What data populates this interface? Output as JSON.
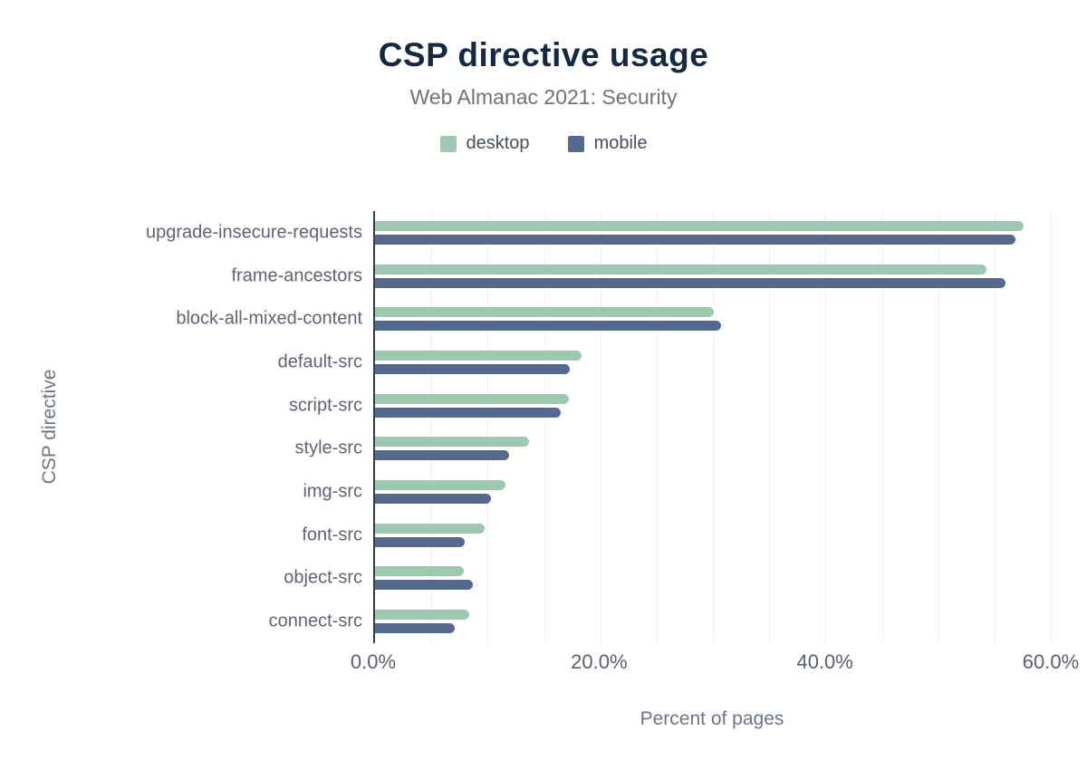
{
  "chart_data": {
    "type": "bar",
    "orientation": "horizontal",
    "title": "CSP directive usage",
    "subtitle": "Web Almanac 2021: Security",
    "xlabel": "Percent of pages",
    "ylabel": "CSP directive",
    "xlim": [
      0,
      60
    ],
    "grid_step": 5,
    "grid": "vertical minor gridlines every 5%",
    "legend_position": "top",
    "x_ticks": [
      0,
      20,
      40,
      60
    ],
    "x_tick_labels": [
      "0.0%",
      "20.0%",
      "40.0%",
      "60.0%"
    ],
    "categories": [
      "upgrade-insecure-requests",
      "frame-ancestors",
      "block-all-mixed-content",
      "default-src",
      "script-src",
      "style-src",
      "img-src",
      "font-src",
      "object-src",
      "connect-src"
    ],
    "series": [
      {
        "name": "desktop",
        "color": "#9fc8b1",
        "values": [
          57.6,
          54.3,
          30.1,
          18.3,
          17.2,
          13.7,
          11.6,
          9.7,
          7.9,
          8.4
        ]
      },
      {
        "name": "mobile",
        "color": "#55688e",
        "values": [
          56.9,
          56.0,
          30.7,
          17.3,
          16.5,
          11.9,
          10.3,
          8.0,
          8.7,
          7.1
        ]
      }
    ]
  },
  "colors": {
    "title": "#152a41",
    "subtitle": "#71717d",
    "axis_line": "#3a3a44",
    "gridline": "#eef0f3"
  }
}
